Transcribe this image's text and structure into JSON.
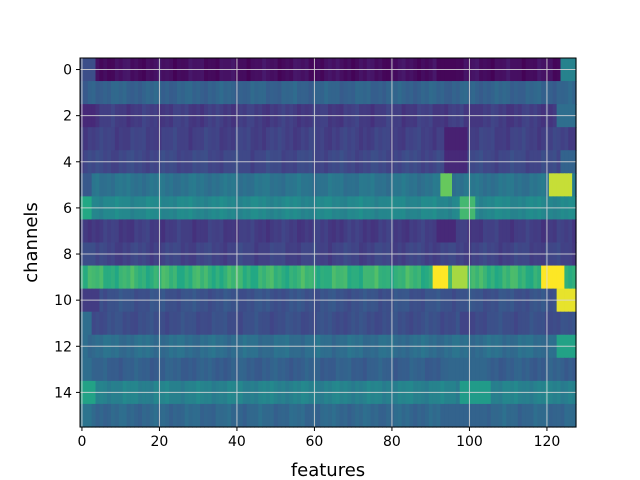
{
  "chart_data": {
    "type": "heatmap",
    "title": "",
    "xlabel": "features",
    "ylabel": "channels",
    "xlim": [
      -0.5,
      127.5
    ],
    "ylim": [
      15.5,
      -0.5
    ],
    "x_ticks": [
      0,
      20,
      40,
      60,
      80,
      100,
      120
    ],
    "y_ticks": [
      0,
      2,
      4,
      6,
      8,
      10,
      12,
      14
    ],
    "grid": true,
    "colormap": "viridis",
    "n_channels": 16,
    "n_features": 128,
    "channels": [
      {
        "base": 0.05,
        "accents": [
          [
            0,
            3,
            0.3
          ],
          [
            124,
            127,
            0.55
          ],
          [
            92,
            96,
            0.02
          ]
        ]
      },
      {
        "base": 0.4,
        "accents": [
          [
            0,
            1,
            0.35
          ]
        ]
      },
      {
        "base": 0.22,
        "accents": [
          [
            0,
            3,
            0.15
          ],
          [
            99,
            103,
            0.2
          ],
          [
            123,
            127,
            0.45
          ]
        ]
      },
      {
        "base": 0.24,
        "accents": [
          [
            94,
            99,
            0.12
          ]
        ]
      },
      {
        "base": 0.27,
        "accents": [
          [
            94,
            99,
            0.15
          ],
          [
            124,
            127,
            0.4
          ]
        ]
      },
      {
        "base": 0.48,
        "accents": [
          [
            0,
            2,
            0.35
          ],
          [
            93,
            95,
            0.85
          ],
          [
            121,
            126,
            0.95
          ]
        ]
      },
      {
        "base": 0.58,
        "accents": [
          [
            0,
            2,
            0.75
          ],
          [
            98,
            101,
            0.8
          ]
        ]
      },
      {
        "base": 0.22,
        "accents": [
          [
            92,
            96,
            0.15
          ]
        ]
      },
      {
        "base": 0.25,
        "accents": [
          [
            0,
            3,
            0.3
          ]
        ]
      },
      {
        "base": 0.78,
        "accents": [
          [
            91,
            94,
            1.0
          ],
          [
            96,
            99,
            0.92
          ],
          [
            119,
            124,
            1.0
          ]
        ]
      },
      {
        "base": 0.32,
        "accents": [
          [
            0,
            4,
            0.22
          ],
          [
            123,
            127,
            0.98
          ]
        ]
      },
      {
        "base": 0.3,
        "accents": [
          [
            0,
            2,
            0.45
          ],
          [
            98,
            101,
            0.25
          ]
        ]
      },
      {
        "base": 0.45,
        "accents": [
          [
            123,
            127,
            0.72
          ]
        ]
      },
      {
        "base": 0.38,
        "accents": [
          [
            0,
            2,
            0.45
          ],
          [
            95,
            103,
            0.42
          ]
        ]
      },
      {
        "base": 0.55,
        "accents": [
          [
            0,
            3,
            0.72
          ],
          [
            98,
            105,
            0.68
          ]
        ]
      },
      {
        "base": 0.42,
        "accents": [
          [
            0,
            2,
            0.48
          ],
          [
            93,
            103,
            0.4
          ]
        ]
      }
    ]
  }
}
